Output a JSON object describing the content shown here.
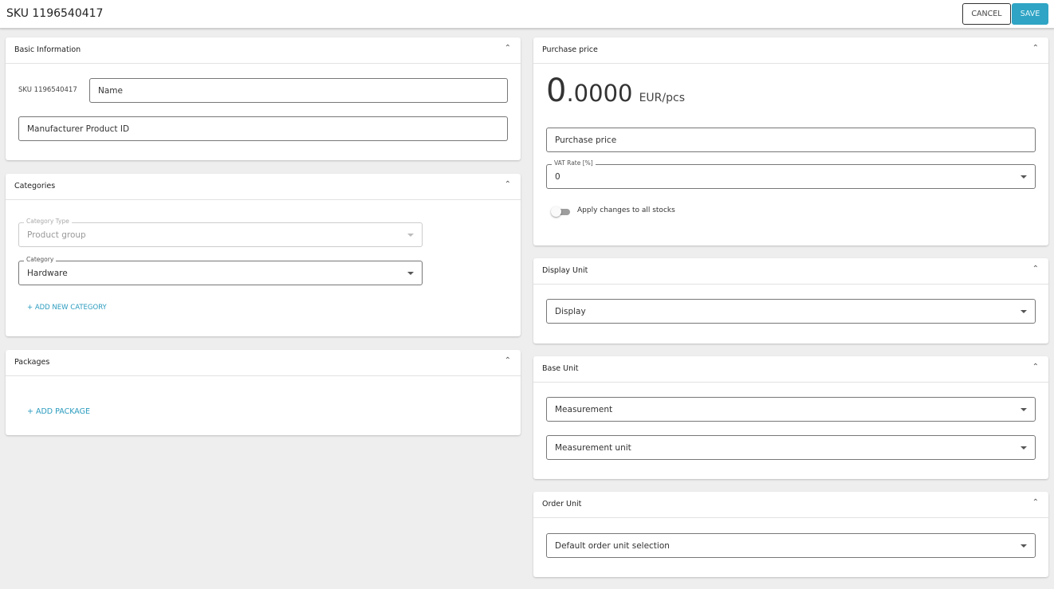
{
  "header": {
    "title": "SKU 1196540417",
    "cancel": "CANCEL",
    "save": "SAVE"
  },
  "basic": {
    "title": "Basic Information",
    "sku_label": "SKU 1196540417",
    "name_placeholder": "Name",
    "mpid_placeholder": "Manufacturer Product ID"
  },
  "categories": {
    "title": "Categories",
    "type_label": "Category Type",
    "type_value": "Product group",
    "category_label": "Category",
    "category_value": "Hardware",
    "add": "+ ADD NEW CATEGORY"
  },
  "packages": {
    "title": "Packages",
    "add": "+ ADD PACKAGE"
  },
  "purchase": {
    "title": "Purchase price",
    "price_int": "0",
    "price_dec": ".0000",
    "unit": "EUR/pcs",
    "price_placeholder": "Purchase price",
    "vat_label": "VAT Rate [%]",
    "vat_value": "0",
    "apply_label": "Apply changes to all stocks",
    "apply_on": false
  },
  "display_unit": {
    "title": "Display Unit",
    "select": "Display"
  },
  "base_unit": {
    "title": "Base Unit",
    "measurement": "Measurement",
    "measurement_unit": "Measurement unit"
  },
  "order_unit": {
    "title": "Order Unit",
    "select": "Default order unit selection"
  },
  "colors": {
    "accent": "#2fa4c4",
    "background": "#eeeeee"
  }
}
